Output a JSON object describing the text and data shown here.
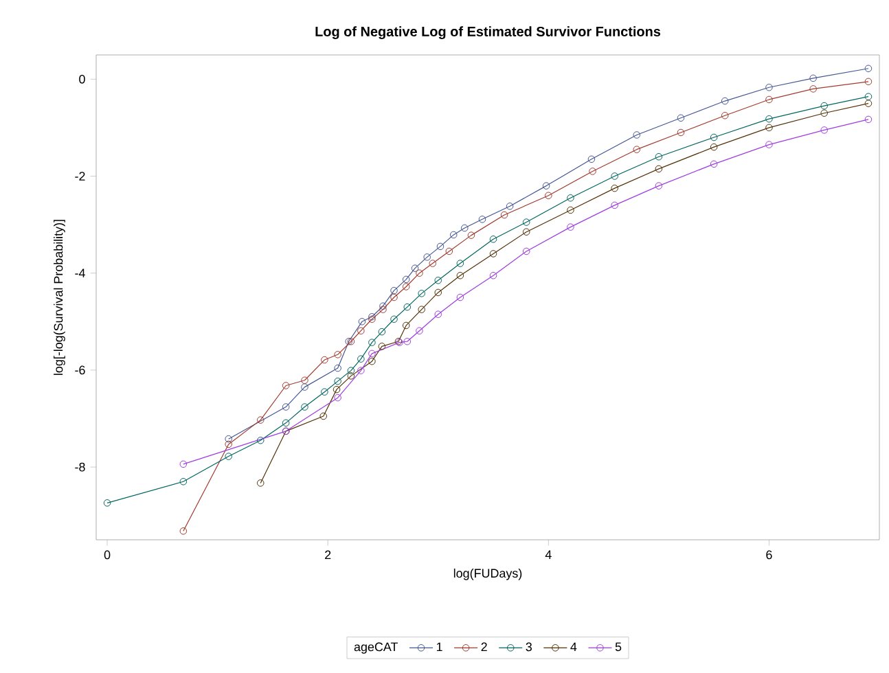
{
  "chart_data": {
    "type": "line",
    "title": "Log of Negative Log of Estimated Survivor Functions",
    "xlabel": "log(FUDays)",
    "ylabel": "log[-log(Survival Probability)]",
    "legend_title": "ageCAT",
    "xlim": [
      -0.1,
      7.0
    ],
    "ylim": [
      -9.5,
      0.5
    ],
    "xticks": [
      0,
      2,
      4,
      6
    ],
    "yticks": [
      -8,
      -6,
      -4,
      -2,
      0
    ],
    "grid": false,
    "legend": "bottom",
    "marker": "circle",
    "line_style": "solid",
    "series": [
      {
        "name": "1",
        "color": "#445694",
        "x": [
          1.1,
          1.62,
          1.79,
          2.09,
          2.19,
          2.31,
          2.4,
          2.5,
          2.6,
          2.71,
          2.79,
          2.9,
          3.02,
          3.14,
          3.24,
          3.4,
          3.65,
          3.98,
          4.39,
          4.8,
          5.2,
          5.6,
          6.0,
          6.4,
          6.9
        ],
        "values": [
          -7.42,
          -6.76,
          -6.35,
          -5.96,
          -5.41,
          -5.0,
          -4.9,
          -4.68,
          -4.36,
          -4.13,
          -3.9,
          -3.67,
          -3.45,
          -3.21,
          -3.07,
          -2.89,
          -2.62,
          -2.2,
          -1.65,
          -1.15,
          -0.8,
          -0.45,
          -0.17,
          0.02,
          0.22
        ]
      },
      {
        "name": "2",
        "color": "#a23a2e",
        "x": [
          0.69,
          1.1,
          1.39,
          1.62,
          1.79,
          1.97,
          2.09,
          2.21,
          2.3,
          2.4,
          2.5,
          2.6,
          2.71,
          2.83,
          2.95,
          3.1,
          3.3,
          3.6,
          4.0,
          4.4,
          4.8,
          5.2,
          5.6,
          6.0,
          6.4,
          6.9
        ],
        "values": [
          -9.32,
          -7.53,
          -7.03,
          -6.32,
          -6.21,
          -5.79,
          -5.68,
          -5.41,
          -5.19,
          -4.95,
          -4.75,
          -4.5,
          -4.28,
          -4.0,
          -3.8,
          -3.55,
          -3.22,
          -2.8,
          -2.4,
          -1.9,
          -1.45,
          -1.1,
          -0.75,
          -0.42,
          -0.2,
          -0.05
        ]
      },
      {
        "name": "3",
        "color": "#01665e",
        "x": [
          0,
          0.69,
          1.1,
          1.39,
          1.62,
          1.79,
          1.97,
          2.09,
          2.21,
          2.3,
          2.4,
          2.49,
          2.6,
          2.72,
          2.85,
          3.0,
          3.2,
          3.5,
          3.8,
          4.2,
          4.6,
          5.0,
          5.5,
          6.0,
          6.5,
          6.9
        ],
        "values": [
          -8.74,
          -8.3,
          -7.78,
          -7.45,
          -7.09,
          -6.76,
          -6.45,
          -6.23,
          -6.01,
          -5.77,
          -5.43,
          -5.21,
          -4.95,
          -4.7,
          -4.42,
          -4.15,
          -3.8,
          -3.3,
          -2.95,
          -2.45,
          -2.0,
          -1.6,
          -1.2,
          -0.82,
          -0.55,
          -0.36
        ]
      },
      {
        "name": "4",
        "color": "#543005",
        "x": [
          1.39,
          1.62,
          1.96,
          2.08,
          2.21,
          2.4,
          2.49,
          2.64,
          2.71,
          2.85,
          3.0,
          3.2,
          3.5,
          3.8,
          4.2,
          4.6,
          5.0,
          5.5,
          6.0,
          6.5,
          6.9
        ],
        "values": [
          -8.33,
          -7.26,
          -6.95,
          -6.4,
          -6.12,
          -5.82,
          -5.51,
          -5.41,
          -5.08,
          -4.75,
          -4.4,
          -4.05,
          -3.6,
          -3.15,
          -2.7,
          -2.25,
          -1.85,
          -1.4,
          -1.0,
          -0.7,
          -0.5
        ]
      },
      {
        "name": "5",
        "color": "#9d3ce0",
        "x": [
          0.69,
          1.62,
          2.09,
          2.3,
          2.4,
          2.65,
          2.72,
          2.83,
          3.0,
          3.2,
          3.5,
          3.8,
          4.2,
          4.6,
          5.0,
          5.5,
          6.0,
          6.5,
          6.9
        ],
        "values": [
          -7.94,
          -7.26,
          -6.57,
          -6.01,
          -5.66,
          -5.43,
          -5.41,
          -5.19,
          -4.85,
          -4.5,
          -4.05,
          -3.55,
          -3.05,
          -2.6,
          -2.2,
          -1.75,
          -1.35,
          -1.05,
          -0.83
        ]
      }
    ]
  }
}
